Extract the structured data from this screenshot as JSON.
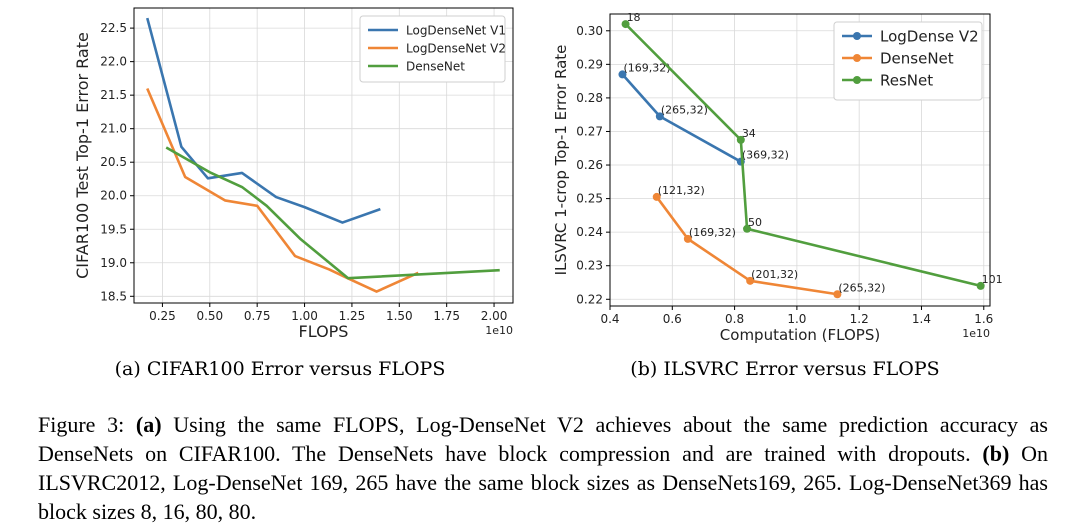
{
  "chart_data": [
    {
      "type": "line",
      "title": "",
      "xlabel": "FLOPS",
      "ylabel": "CIFAR100 Test Top-1 Error Rate",
      "x_offset_text": "1e10",
      "xlim": [
        0.1,
        2.1
      ],
      "ylim": [
        18.4,
        22.8
      ],
      "xticks": [
        0.25,
        0.5,
        0.75,
        1.0,
        1.25,
        1.5,
        1.75,
        2.0
      ],
      "xtick_labels": [
        "0.25",
        "0.50",
        "0.75",
        "1.00",
        "1.25",
        "1.50",
        "1.75",
        "2.00"
      ],
      "yticks": [
        18.5,
        19.0,
        19.5,
        20.0,
        20.5,
        21.0,
        21.5,
        22.0,
        22.5
      ],
      "ytick_labels": [
        "18.5",
        "19.0",
        "19.5",
        "20.0",
        "20.5",
        "21.0",
        "21.5",
        "22.0",
        "22.5"
      ],
      "grid": true,
      "legend_position": "top-right",
      "series": [
        {
          "name": "LogDenseNet V1",
          "color": "#3a76af",
          "x": [
            0.17,
            0.35,
            0.49,
            0.67,
            0.85,
            1.0,
            1.2,
            1.4
          ],
          "y": [
            22.65,
            20.73,
            20.26,
            20.34,
            19.98,
            19.83,
            19.6,
            19.8
          ]
        },
        {
          "name": "LogDenseNet V2",
          "color": "#ef8636",
          "x": [
            0.17,
            0.37,
            0.58,
            0.75,
            0.95,
            1.13,
            1.22,
            1.38,
            1.6
          ],
          "y": [
            21.6,
            20.28,
            19.93,
            19.85,
            19.1,
            18.9,
            18.78,
            18.57,
            18.85
          ]
        },
        {
          "name": "DenseNet",
          "color": "#519e3e",
          "x": [
            0.27,
            0.5,
            0.67,
            0.8,
            0.98,
            1.23,
            2.03
          ],
          "y": [
            20.72,
            20.35,
            20.13,
            19.85,
            19.35,
            18.77,
            18.89
          ]
        }
      ]
    },
    {
      "type": "line",
      "title": "",
      "xlabel": "Computation (FLOPS)",
      "ylabel": "ILSVRC 1-crop Top-1 Error Rate",
      "x_offset_text": "1e10",
      "xlim": [
        0.4,
        1.62
      ],
      "ylim": [
        0.218,
        0.305
      ],
      "xticks": [
        0.4,
        0.6,
        0.8,
        1.0,
        1.2,
        1.4,
        1.6
      ],
      "xtick_labels": [
        "0.4",
        "0.6",
        "0.8",
        "1.0",
        "1.2",
        "1.4",
        "1.6"
      ],
      "yticks": [
        0.22,
        0.23,
        0.24,
        0.25,
        0.26,
        0.27,
        0.28,
        0.29,
        0.3
      ],
      "ytick_labels": [
        "0.22",
        "0.23",
        "0.24",
        "0.25",
        "0.26",
        "0.27",
        "0.28",
        "0.29",
        "0.30"
      ],
      "grid": true,
      "legend_position": "top-right",
      "series": [
        {
          "name": "LogDense V2",
          "color": "#3a76af",
          "x": [
            0.44,
            0.56,
            0.82
          ],
          "y": [
            0.287,
            0.2745,
            0.261
          ],
          "point_labels": [
            "(169,32)",
            "(265,32)",
            "(369,32)"
          ]
        },
        {
          "name": "DenseNet",
          "color": "#ef8636",
          "x": [
            0.55,
            0.65,
            0.85,
            1.13
          ],
          "y": [
            0.2505,
            0.238,
            0.2255,
            0.2215
          ],
          "point_labels": [
            "(121,32)",
            "(169,32)",
            "(201,32)",
            "(265,32)"
          ]
        },
        {
          "name": "ResNet",
          "color": "#519e3e",
          "x": [
            0.45,
            0.82,
            0.84,
            1.59
          ],
          "y": [
            0.302,
            0.2675,
            0.241,
            0.224
          ],
          "point_labels": [
            "18",
            "34",
            "50",
            "101"
          ]
        }
      ]
    }
  ],
  "captions": {
    "sub_a": "(a) CIFAR100 Error versus FLOPS",
    "sub_b": "(b) ILSVRC Error versus FLOPS"
  },
  "figure_caption": {
    "label": "Figure 3:",
    "a_label": "(a)",
    "a_text": " Using the same FLOPS, Log-DenseNet V2 achieves about the same prediction accuracy as DenseNets on CIFAR100. The DenseNets have block compression and are trained with dropouts. ",
    "b_label": "(b)",
    "b_text": " On ILSVRC2012, Log-DenseNet 169, 265 have the same block sizes as DenseNets169, 265. Log-DenseNet369 has block sizes 8, 16, 80, 80."
  }
}
